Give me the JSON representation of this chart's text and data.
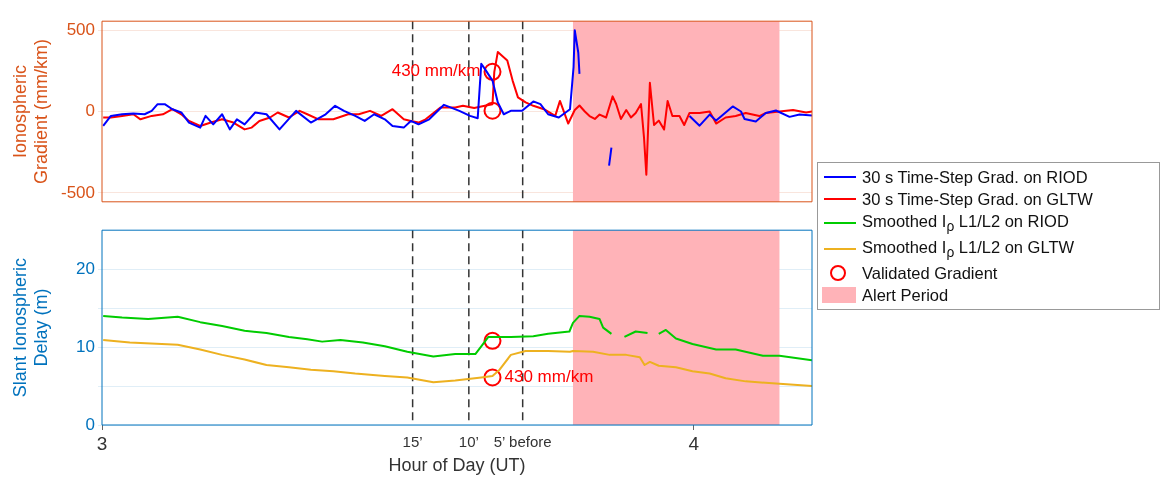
{
  "chart_data": [
    {
      "type": "line",
      "ylabel": "Ionospheric Gradient (mm/km)",
      "xlim": [
        3,
        4.2
      ],
      "ylim": [
        -555,
        555
      ],
      "yticks": [
        -500,
        0,
        500
      ],
      "tick_labels": "y",
      "grid": "y",
      "legend": "right",
      "series": [
        {
          "name": "30 s Time-Step Grad. on RIOD",
          "color": "#0000ff",
          "x": [
            3.002,
            3.015,
            3.034,
            3.053,
            3.072,
            3.084,
            3.094,
            3.106,
            3.119,
            3.134,
            3.147,
            3.166,
            3.175,
            3.188,
            3.203,
            3.216,
            3.228,
            3.241,
            3.259,
            3.278,
            3.3,
            3.328,
            3.353,
            3.378,
            3.394,
            3.409,
            3.428,
            3.444,
            3.46,
            3.478,
            3.491,
            3.51,
            3.522,
            3.535,
            3.553,
            3.578,
            3.604,
            3.622,
            3.635,
            3.641,
            3.647,
            3.66,
            3.669,
            3.679,
            3.691,
            3.71,
            3.729,
            3.741,
            3.754,
            3.772,
            3.791,
            3.797,
            3.799,
            3.805,
            3.807,
            3.83,
            3.857,
            3.861,
            3.93,
            3.993,
            4.01,
            4.027,
            4.038,
            4.05,
            4.066,
            4.08,
            4.086,
            4.105,
            4.122,
            4.139,
            4.162,
            4.179,
            4.2
          ],
          "values": [
            -89,
            -27,
            -17,
            -12,
            -17,
            4,
            45,
            45,
            14,
            -6,
            -68,
            -99,
            -27,
            -79,
            -17,
            -110,
            -48,
            -79,
            -6,
            -17,
            -110,
            4,
            -68,
            -17,
            35,
            4,
            -27,
            -58,
            -17,
            -48,
            -89,
            -99,
            -58,
            -79,
            -48,
            41,
            4,
            -27,
            -41,
            293,
            262,
            190,
            56,
            -17,
            4,
            4,
            62,
            45,
            -17,
            -37,
            14,
            273,
            500,
            361,
            231,
            null,
            -333,
            -222,
            null,
            -28,
            -87,
            -19,
            -56,
            -19,
            31,
            0,
            -46,
            -61,
            -9,
            6,
            -33,
            -19,
            -24
          ]
        },
        {
          "name": "30 s Time-Step Grad. on GLTW",
          "color": "#ff0000",
          "x": [
            3.002,
            3.015,
            3.034,
            3.053,
            3.065,
            3.084,
            3.103,
            3.119,
            3.134,
            3.147,
            3.166,
            3.184,
            3.203,
            3.222,
            3.241,
            3.253,
            3.266,
            3.284,
            3.297,
            3.316,
            3.334,
            3.347,
            3.366,
            3.391,
            3.416,
            3.434,
            3.453,
            3.472,
            3.491,
            3.51,
            3.522,
            3.535,
            3.547,
            3.572,
            3.597,
            3.61,
            3.629,
            3.647,
            3.66,
            3.663,
            3.669,
            3.685,
            3.694,
            3.703,
            3.716,
            3.729,
            3.747,
            3.766,
            3.774,
            3.788,
            3.799,
            3.807,
            3.816,
            3.824,
            3.833,
            3.841,
            3.852,
            3.863,
            3.869,
            3.877,
            3.886,
            3.894,
            3.902,
            3.911,
            3.916,
            3.92,
            3.926,
            3.933,
            3.941,
            3.95,
            3.956,
            3.964,
            3.976,
            3.984,
            3.993,
            4.01,
            4.027,
            4.038,
            4.054,
            4.071,
            4.088,
            4.111,
            4.122,
            4.145,
            4.168,
            4.19,
            4.2
          ],
          "values": [
            -37,
            -37,
            -27,
            -17,
            -48,
            -27,
            -17,
            14,
            -17,
            -58,
            -89,
            -68,
            -48,
            -68,
            -110,
            -99,
            -58,
            -37,
            -6,
            -37,
            4,
            -17,
            -48,
            -48,
            -17,
            -17,
            4,
            -27,
            14,
            -48,
            -58,
            -68,
            -48,
            25,
            25,
            35,
            21,
            35,
            45,
            242,
            366,
            314,
            190,
            87,
            56,
            35,
            14,
            -27,
            65,
            -74,
            9,
            37,
            0,
            -28,
            -46,
            -19,
            -37,
            93,
            46,
            -46,
            9,
            -37,
            -9,
            46,
            -157,
            -389,
            176,
            -83,
            -56,
            -111,
            65,
            -28,
            -28,
            -83,
            -9,
            -9,
            0,
            -74,
            -37,
            -28,
            -9,
            -28,
            -9,
            0,
            9,
            -6,
            0
          ]
        },
        {
          "type": "scatter",
          "name": "Validated Gradient",
          "color": "#ff0000",
          "marker": "circle",
          "x": [
            3.66,
            3.66
          ],
          "values": [
            244,
            5
          ]
        }
      ],
      "annotations": [
        {
          "text": "430 mm/km",
          "x": 3.66,
          "y": 244
        }
      ],
      "ref_lines": [
        {
          "axis": "x",
          "value": 3.525,
          "color": "#333333",
          "line_style": "dashed"
        },
        {
          "axis": "x",
          "value": 3.62,
          "color": "#333333",
          "line_style": "dashed"
        },
        {
          "axis": "x",
          "value": 3.711,
          "color": "#333333",
          "line_style": "dashed"
        }
      ],
      "bands": [
        {
          "axis": "x",
          "from": 3.796,
          "to": 4.145,
          "label": "Alert Period",
          "color": "#ffb3b8"
        }
      ]
    },
    {
      "type": "line",
      "ylabel": "Slant Ionospheric Delay (m)",
      "xlabel": "Hour of Day (UT)",
      "xlim": [
        3,
        4.2
      ],
      "ylim": [
        0,
        25
      ],
      "xticks": [
        3,
        4
      ],
      "yticks": [
        0,
        {
          "value": 5,
          "label": null
        },
        10,
        {
          "value": 15,
          "label": null
        },
        20
      ],
      "grid": "y",
      "legend": "right",
      "series": [
        {
          "name": "Smoothed I$_{ρ}$ L1/L2 on RIOD",
          "color": "#00cc00",
          "x": [
            3.002,
            3.034,
            3.078,
            3.128,
            3.166,
            3.203,
            3.241,
            3.278,
            3.316,
            3.347,
            3.372,
            3.403,
            3.441,
            3.478,
            3.516,
            3.56,
            3.597,
            3.631,
            3.641,
            3.653,
            3.691,
            3.729,
            3.754,
            3.79,
            3.796,
            3.807,
            3.824,
            3.841,
            3.847,
            3.861,
            3.872,
            3.883,
            3.902,
            3.922,
            3.93,
            3.941,
            3.953,
            3.97,
            3.998,
            4.038,
            4.071,
            4.117,
            4.145,
            4.2
          ],
          "values": [
            14.0,
            13.8,
            13.6,
            13.9,
            13.2,
            12.7,
            12.1,
            11.8,
            11.3,
            11.0,
            10.7,
            10.9,
            10.6,
            10.1,
            9.4,
            8.8,
            9.1,
            9.1,
            10.1,
            11.3,
            11.3,
            11.4,
            11.7,
            12.0,
            13.1,
            14.0,
            13.9,
            13.6,
            12.5,
            11.7,
            null,
            11.3,
            12.0,
            11.8,
            null,
            11.7,
            12.2,
            11.1,
            10.4,
            9.7,
            9.7,
            8.9,
            8.9,
            8.3
          ]
        },
        {
          "name": "Smoothed I$_{ρ}$ L1/L2 on GLTW",
          "color": "#edb120",
          "x": [
            3.002,
            3.047,
            3.128,
            3.166,
            3.203,
            3.241,
            3.278,
            3.316,
            3.353,
            3.391,
            3.428,
            3.478,
            3.516,
            3.56,
            3.597,
            3.641,
            3.66,
            3.672,
            3.691,
            3.716,
            3.754,
            3.791,
            3.796,
            3.83,
            3.858,
            3.886,
            3.909,
            3.917,
            3.926,
            3.941,
            3.97,
            3.998,
            4.027,
            4.054,
            4.088,
            4.145,
            4.2
          ],
          "values": [
            10.9,
            10.6,
            10.3,
            9.7,
            9.0,
            8.4,
            7.7,
            7.4,
            7.1,
            6.9,
            6.6,
            6.3,
            6.1,
            5.5,
            5.7,
            6.1,
            6.3,
            7.1,
            9.0,
            9.5,
            9.5,
            9.4,
            9.5,
            9.4,
            9.0,
            9.0,
            8.7,
            7.7,
            8.1,
            7.6,
            7.4,
            6.9,
            6.6,
            6.0,
            5.6,
            5.3,
            5.0
          ]
        },
        {
          "type": "scatter",
          "color": "#ff0000",
          "marker": "circle",
          "x": [
            3.66,
            3.66
          ],
          "values": [
            10.8,
            6.1
          ]
        }
      ],
      "annotations": [
        {
          "text": "430 mm/km",
          "x": 3.66,
          "y": 6.1
        }
      ],
      "ref_lines": [
        {
          "axis": "x",
          "value": 3.525,
          "label": "15’",
          "color": "#333333",
          "line_style": "dashed"
        },
        {
          "axis": "x",
          "value": 3.62,
          "label": "10’",
          "color": "#333333",
          "line_style": "dashed"
        },
        {
          "axis": "x",
          "value": 3.711,
          "label": "5’ before",
          "color": "#333333",
          "line_style": "dashed"
        }
      ],
      "bands": [
        {
          "axis": "x",
          "from": 3.796,
          "to": 4.145,
          "color": "#ffb3b8"
        }
      ]
    }
  ]
}
